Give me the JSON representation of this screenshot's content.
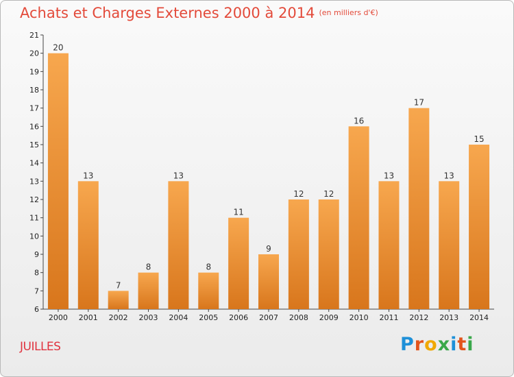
{
  "title": "Achats et Charges Externes 2000 à 2014",
  "unit": "(en milliers d'€)",
  "town": "JUILLES",
  "logo": {
    "letters": [
      "P",
      "r",
      "o",
      "x",
      "i",
      "t",
      "i"
    ],
    "colors": [
      "#1e90d8",
      "#e2541c",
      "#f0a800",
      "#3aa84a",
      "#1e90d8",
      "#e2541c",
      "#3aa84a"
    ]
  },
  "colors": {
    "bar_light": "#f7a74e",
    "bar_dark": "#d8761c",
    "title": "#e34a3a"
  },
  "chart_data": {
    "type": "bar",
    "categories": [
      "2000",
      "2001",
      "2002",
      "2003",
      "2004",
      "2005",
      "2006",
      "2007",
      "2008",
      "2009",
      "2010",
      "2011",
      "2012",
      "2013",
      "2014"
    ],
    "values": [
      20,
      13,
      7,
      8,
      13,
      8,
      11,
      9,
      12,
      12,
      16,
      13,
      17,
      13,
      15
    ],
    "yticks": [
      6,
      7,
      8,
      9,
      10,
      11,
      12,
      13,
      14,
      15,
      16,
      17,
      18,
      19,
      20,
      21
    ],
    "ylim": [
      6,
      21
    ],
    "grid": false,
    "title": "Achats et Charges Externes 2000 à 2014",
    "xlabel": "",
    "ylabel": ""
  }
}
